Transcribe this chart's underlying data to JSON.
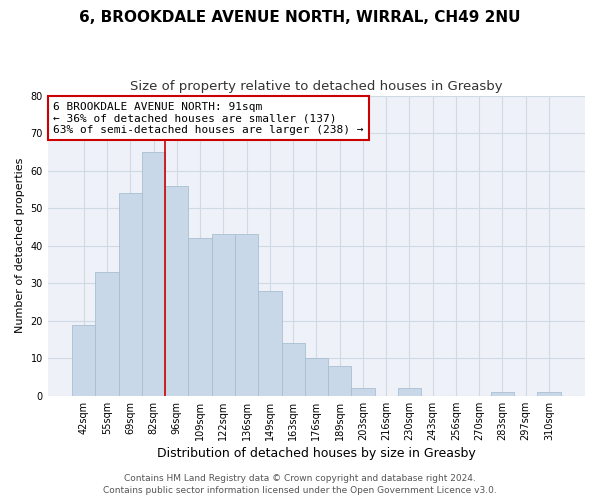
{
  "title": "6, BROOKDALE AVENUE NORTH, WIRRAL, CH49 2NU",
  "subtitle": "Size of property relative to detached houses in Greasby",
  "xlabel": "Distribution of detached houses by size in Greasby",
  "ylabel": "Number of detached properties",
  "bar_labels": [
    "42sqm",
    "55sqm",
    "69sqm",
    "82sqm",
    "96sqm",
    "109sqm",
    "122sqm",
    "136sqm",
    "149sqm",
    "163sqm",
    "176sqm",
    "189sqm",
    "203sqm",
    "216sqm",
    "230sqm",
    "243sqm",
    "256sqm",
    "270sqm",
    "283sqm",
    "297sqm",
    "310sqm"
  ],
  "bar_values": [
    19,
    33,
    54,
    65,
    56,
    42,
    43,
    43,
    28,
    14,
    10,
    8,
    2,
    0,
    2,
    0,
    0,
    0,
    1,
    0,
    1
  ],
  "bar_color": "#c8d8e8",
  "bar_edge_color": "#a8bfd0",
  "vline_color": "#cc0000",
  "annotation_line1": "6 BROOKDALE AVENUE NORTH: 91sqm",
  "annotation_line2": "← 36% of detached houses are smaller (137)",
  "annotation_line3": "63% of semi-detached houses are larger (238) →",
  "annotation_box_color": "#ffffff",
  "annotation_box_edge_color": "#cc0000",
  "ylim": [
    0,
    80
  ],
  "yticks": [
    0,
    10,
    20,
    30,
    40,
    50,
    60,
    70,
    80
  ],
  "grid_color": "#d0dae4",
  "background_color": "#ffffff",
  "plot_bg_color": "#eef2f8",
  "footer_line1": "Contains HM Land Registry data © Crown copyright and database right 2024.",
  "footer_line2": "Contains public sector information licensed under the Open Government Licence v3.0.",
  "title_fontsize": 11,
  "subtitle_fontsize": 9.5,
  "xlabel_fontsize": 9,
  "ylabel_fontsize": 8,
  "tick_fontsize": 7,
  "annotation_fontsize": 8,
  "footer_fontsize": 6.5
}
